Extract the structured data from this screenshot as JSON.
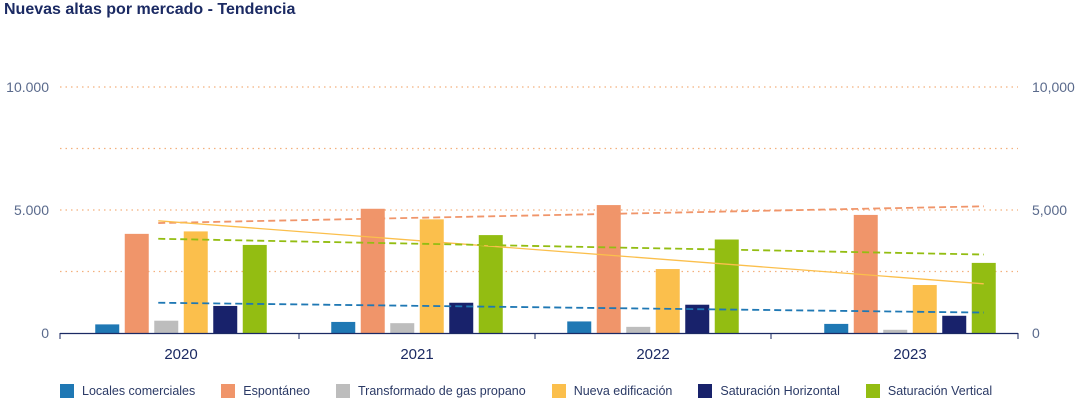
{
  "title": "Nuevas altas por mercado - Tendencia",
  "chart_data": {
    "type": "bar",
    "categories": [
      "2020",
      "2021",
      "2022",
      "2023"
    ],
    "ylim": [
      0,
      10000
    ],
    "grid": true,
    "left_ticks": [
      {
        "value": 0,
        "label": "0"
      },
      {
        "value": 5000,
        "label": "5.000"
      },
      {
        "value": 10000,
        "label": "10.000"
      }
    ],
    "right_ticks": [
      {
        "value": 0,
        "label": "0"
      },
      {
        "value": 5000,
        "label": "5,000"
      },
      {
        "value": 10000,
        "label": "10,000"
      }
    ],
    "gridline_values": [
      2500,
      5000,
      7500,
      10000
    ],
    "legend_position": "bottom",
    "series": [
      {
        "name": "Locales comerciales",
        "color": "#1f78b4",
        "values": [
          350,
          450,
          470,
          370
        ],
        "trend": [
          1230,
          830
        ]
      },
      {
        "name": "Espontáneo",
        "color": "#f0956a",
        "values": [
          4030,
          5050,
          5200,
          4800
        ],
        "trend": [
          4470,
          5150
        ]
      },
      {
        "name": "Transformado de gas propano",
        "color": "#bdbdbd",
        "values": [
          500,
          400,
          250,
          130
        ],
        "trend": null
      },
      {
        "name": "Nueva edificación",
        "color": "#fbbf4c",
        "values": [
          4130,
          4620,
          2600,
          1950
        ],
        "trend": [
          4560,
          2000
        ]
      },
      {
        "name": "Saturación Horizontal",
        "color": "#18226b",
        "values": [
          1100,
          1230,
          1150,
          700
        ],
        "trend": null
      },
      {
        "name": "Saturación Vertical",
        "color": "#93bd12",
        "values": [
          3580,
          3980,
          3800,
          2850
        ],
        "trend": [
          3830,
          3190
        ]
      }
    ]
  }
}
